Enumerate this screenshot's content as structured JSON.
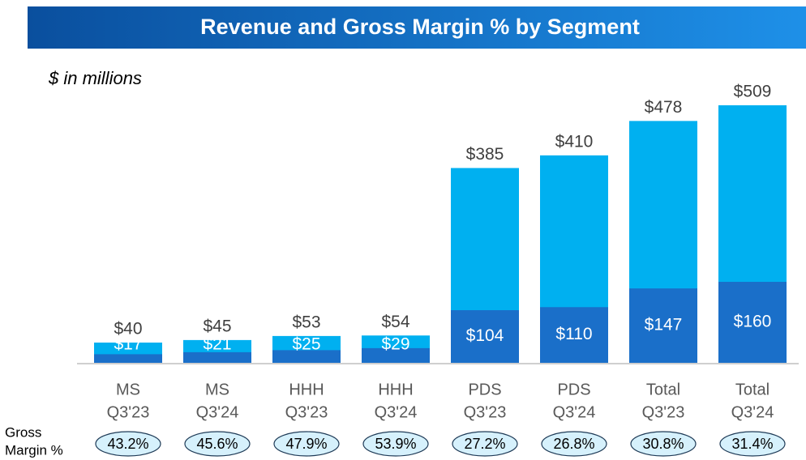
{
  "chart_data": {
    "type": "bar",
    "title": "Revenue and Gross Margin % by Segment",
    "subtitle": "$ in millions",
    "categories": [
      [
        "MS",
        "Q3'23"
      ],
      [
        "MS",
        "Q3'24"
      ],
      [
        "HHH",
        "Q3'23"
      ],
      [
        "HHH",
        "Q3'24"
      ],
      [
        "PDS",
        "Q3'23"
      ],
      [
        "PDS",
        "Q3'24"
      ],
      [
        "Total",
        "Q3'23"
      ],
      [
        "Total",
        "Q3'24"
      ]
    ],
    "series": [
      {
        "color": "#00b0f0",
        "values": [
          40,
          45,
          53,
          54,
          385,
          410,
          478,
          509
        ],
        "value_labels": [
          "$40",
          "$45",
          "$53",
          "$54",
          "$385",
          "$410",
          "$478",
          "$509"
        ]
      },
      {
        "color": "#1a6fc9",
        "values": [
          17,
          21,
          25,
          29,
          104,
          110,
          147,
          160
        ],
        "value_labels": [
          "$17",
          "$21",
          "$25",
          "$29",
          "$104",
          "$110",
          "$147",
          "$160"
        ]
      }
    ],
    "gross_margin": {
      "label": [
        "Gross",
        "Margin %"
      ],
      "values": [
        43.2,
        45.6,
        47.9,
        53.9,
        27.2,
        26.8,
        30.8,
        31.4
      ],
      "value_labels": [
        "43.2%",
        "45.6%",
        "47.9%",
        "53.9%",
        "27.2%",
        "26.8%",
        "30.8%",
        "31.4%"
      ]
    }
  }
}
